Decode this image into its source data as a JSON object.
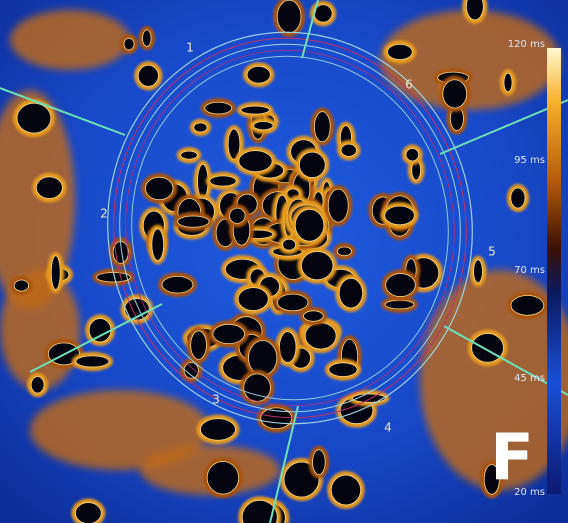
{
  "panel_label": "F",
  "segments": [
    "1",
    "2",
    "3",
    "4",
    "5",
    "6"
  ],
  "colorbar": {
    "ticks": [
      "120 ms",
      "95 ms",
      "70 ms",
      "45 ms",
      "20 ms"
    ]
  }
}
